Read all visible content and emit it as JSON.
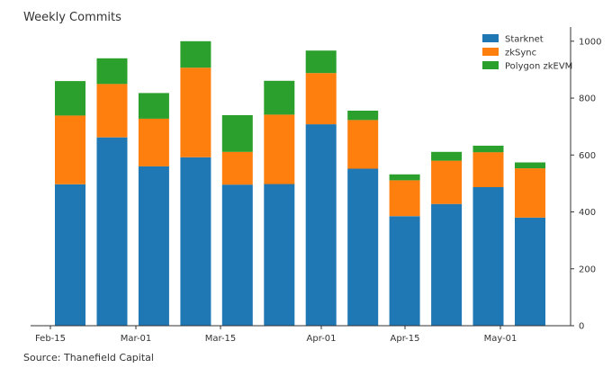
{
  "title": "Weekly Commits",
  "source": "Source: Thanefield Capital",
  "chart_data": {
    "type": "bar",
    "stacked": true,
    "title": "Weekly Commits",
    "xlabel": "",
    "ylabel": "",
    "ylim": [
      0,
      1050
    ],
    "y_axis_side": "right",
    "y_ticks": [
      0,
      200,
      400,
      600,
      800,
      1000
    ],
    "x_tick_labels": [
      "Feb-15",
      "Mar-01",
      "Mar-15",
      "Apr-01",
      "Apr-15",
      "May-01"
    ],
    "categories": [
      "2024-02-15",
      "2024-02-22",
      "2024-02-29",
      "2024-03-07",
      "2024-03-14",
      "2024-03-21",
      "2024-03-28",
      "2024-04-04",
      "2024-04-11",
      "2024-04-18",
      "2024-04-25",
      "2024-05-02"
    ],
    "series": [
      {
        "name": "Starknet",
        "color": "#1f77b4",
        "values": [
          497,
          662,
          560,
          592,
          496,
          498,
          708,
          552,
          385,
          428,
          487,
          380
        ]
      },
      {
        "name": "zkSync",
        "color": "#ff7f0e",
        "values": [
          242,
          188,
          168,
          315,
          115,
          244,
          180,
          171,
          126,
          152,
          123,
          173
        ]
      },
      {
        "name": "Polygon zkEVM",
        "color": "#2ca02c",
        "values": [
          121,
          90,
          90,
          93,
          129,
          119,
          79,
          33,
          21,
          31,
          23,
          21
        ]
      }
    ],
    "legend_position": "top-right",
    "grid": false
  }
}
